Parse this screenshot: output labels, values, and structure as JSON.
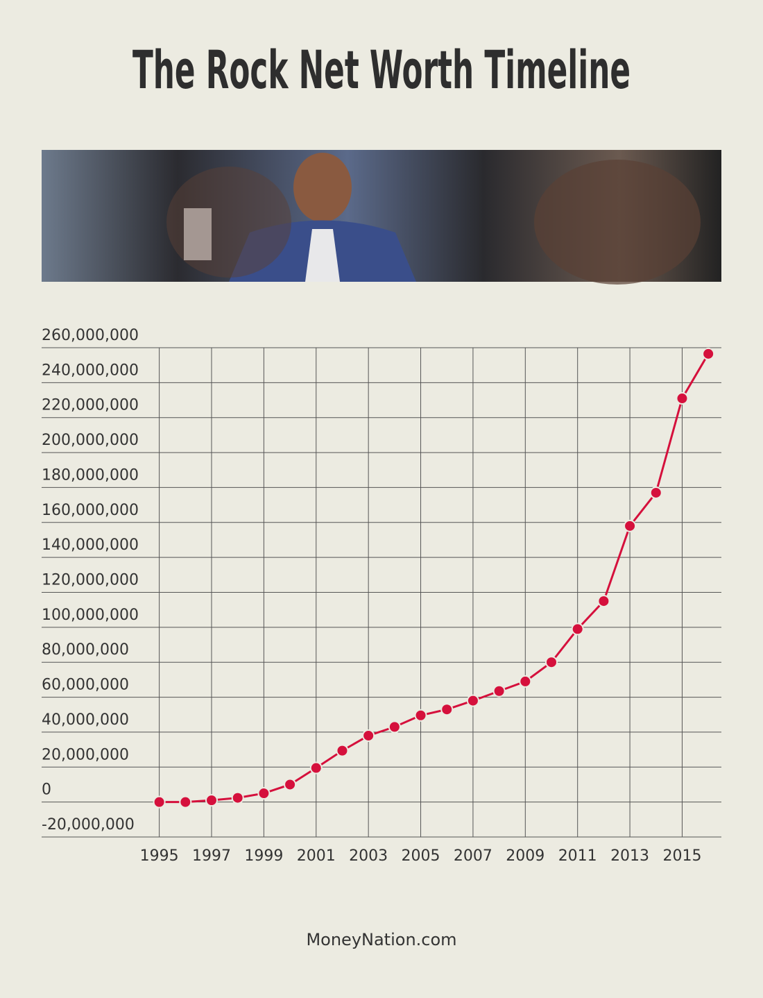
{
  "chart_data": {
    "type": "line",
    "title": "The Rock Net Worth Timeline",
    "footer": "MoneyNation.com",
    "x": [
      1995,
      1996,
      1997,
      1998,
      1999,
      2000,
      2001,
      2002,
      2003,
      2004,
      2005,
      2006,
      2007,
      2008,
      2009,
      2010,
      2011,
      2012,
      2013,
      2014,
      2015,
      2016
    ],
    "series": [
      {
        "name": "Net Worth",
        "color": "#d5103c",
        "values": [
          0,
          0,
          1000000,
          2400000,
          5000000,
          10000000,
          19500000,
          29400000,
          38000000,
          43000000,
          49600000,
          53000000,
          58000000,
          63500000,
          69000000,
          80000000,
          99000000,
          115000000,
          158000000,
          177000000,
          231000000,
          256500000
        ]
      }
    ],
    "xlim": [
      1990.5,
      2016.5
    ],
    "xticks": [
      1995,
      1997,
      1999,
      2001,
      2003,
      2005,
      2007,
      2009,
      2011,
      2013,
      2015
    ],
    "ylim": [
      -20000000,
      260000000
    ],
    "yticks": [
      {
        "value": -20000000,
        "label": "-20,000,000"
      },
      0,
      {
        "value": 20000000,
        "label": "20,000,000"
      },
      {
        "value": 40000000,
        "label": "40,000,000"
      },
      {
        "value": 60000000,
        "label": "60,000,000"
      },
      {
        "value": 80000000,
        "label": "80,000,000"
      },
      {
        "value": 100000000,
        "label": "100,000,000"
      },
      {
        "value": 120000000,
        "label": "120,000,000"
      },
      {
        "value": 140000000,
        "label": "140,000,000"
      },
      {
        "value": 160000000,
        "label": "160,000,000"
      },
      {
        "value": 180000000,
        "label": "180,000,000"
      },
      {
        "value": 200000000,
        "label": "200,000,000"
      },
      {
        "value": 220000000,
        "label": "220,000,000"
      },
      {
        "value": 240000000,
        "label": "240,000,000"
      },
      {
        "value": 260000000,
        "label": "260,000,000"
      }
    ],
    "grid": true
  }
}
